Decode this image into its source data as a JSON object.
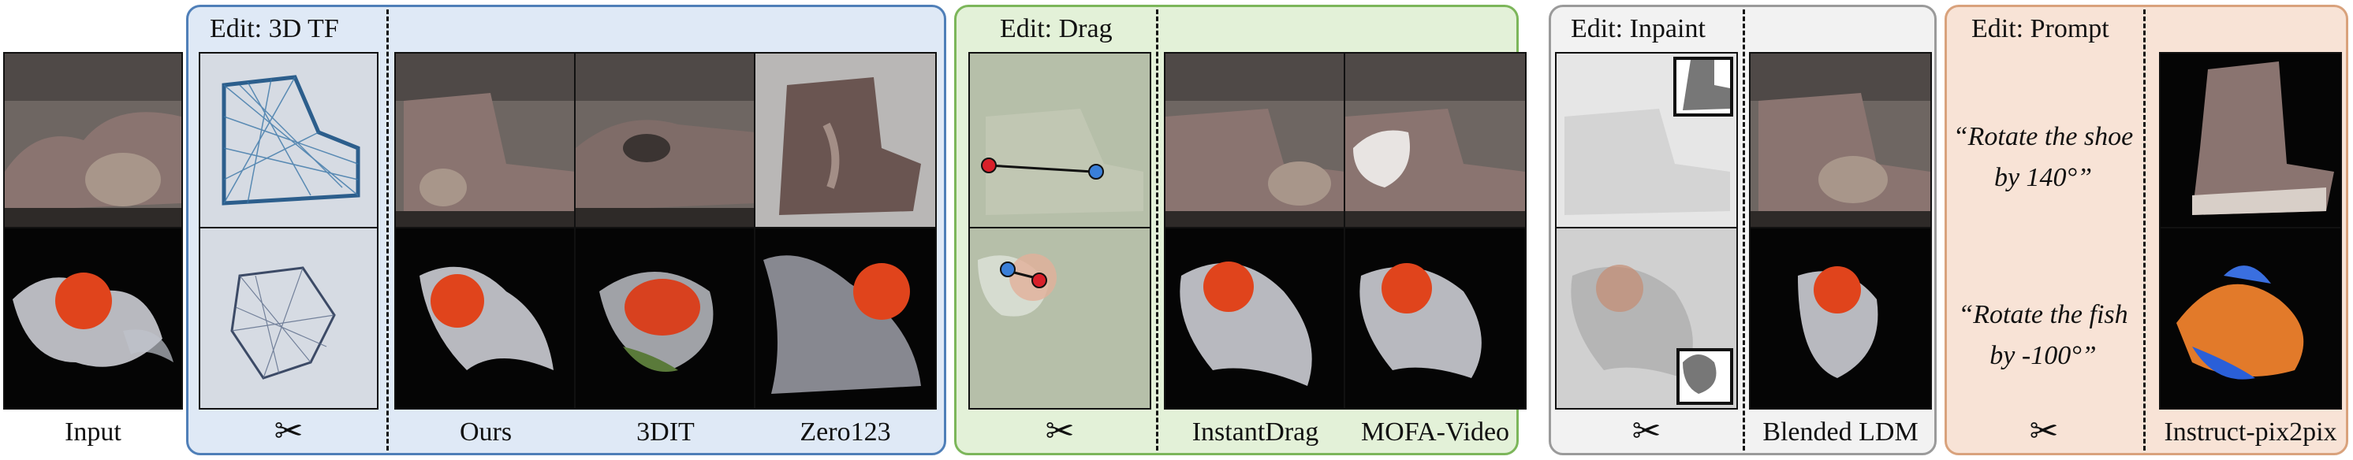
{
  "panels": {
    "tf": {
      "title": "Edit: 3D TF",
      "bg": "#dfe9f6",
      "border": "#4f7fb8"
    },
    "drag": {
      "title": "Edit: Drag",
      "bg": "#e3f1d8",
      "border": "#7cb65a"
    },
    "inpaint": {
      "title": "Edit: Inpaint",
      "bg": "#f2f2f2",
      "border": "#9a9a9a"
    },
    "prompt": {
      "title": "Edit: Prompt",
      "bg": "#f8e3d6",
      "border": "#d9a27c"
    }
  },
  "captions": {
    "input": "Input",
    "ours": "Ours",
    "dit3": "3DIT",
    "zero123": "Zero123",
    "instantdrag": "InstantDrag",
    "mofa": "MOFA-Video",
    "blended": "Blended LDM",
    "ip2p": "Instruct-pix2pix"
  },
  "prompts": {
    "shoe": "“Rotate the shoe by 140°”",
    "fish": "“Rotate the fish by -100°”"
  },
  "icons": {
    "scissors": "✂"
  },
  "colors": {
    "shoe_bg": "#6b6461",
    "shoe": "#8a7470",
    "fish_bg": "#050505",
    "fish_head": "#e0441c",
    "drag_red": "#d8202a",
    "drag_blue": "#3a7fd8"
  }
}
